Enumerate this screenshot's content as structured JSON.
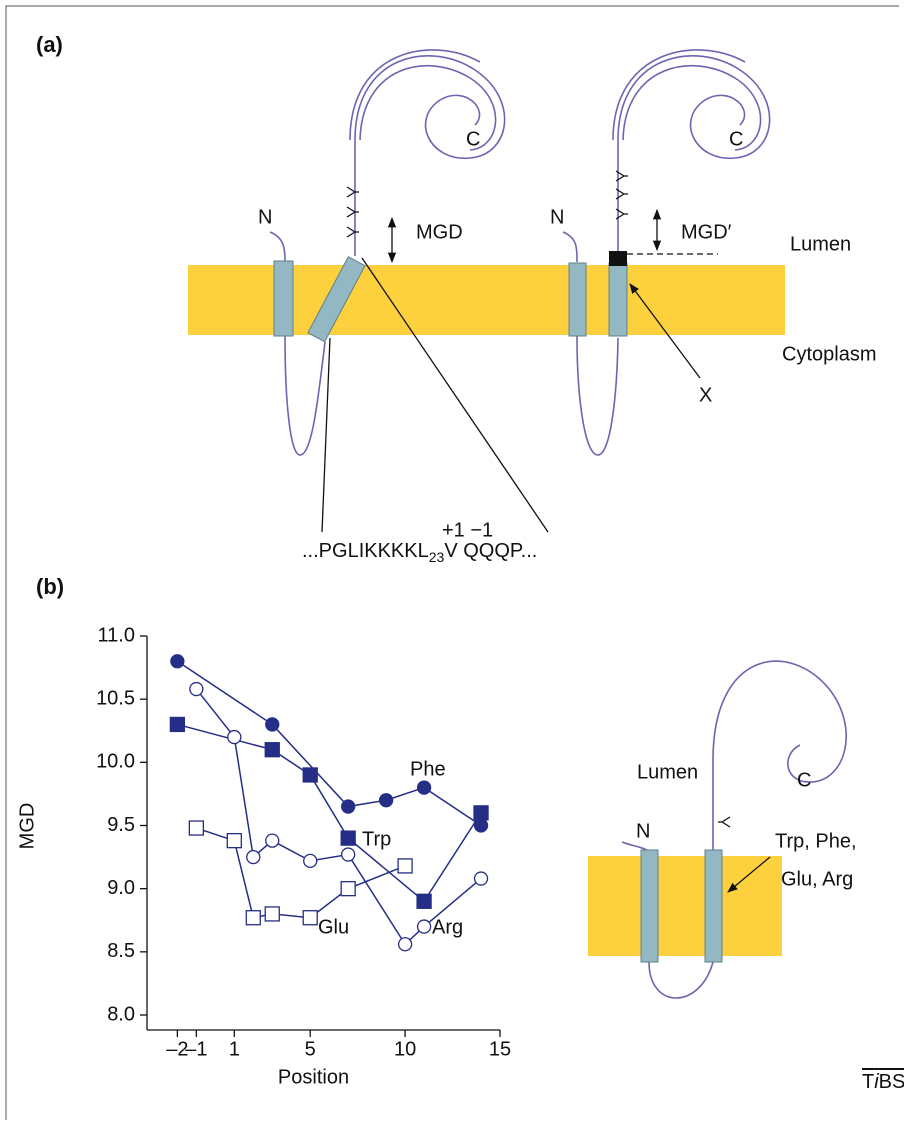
{
  "panel_a": {
    "label": "(a)",
    "c_left": "C",
    "c_right": "C",
    "n_left": "N",
    "n_right": "N",
    "mgd": "MGD",
    "mgd_prime": "MGD′",
    "lumen": "Lumen",
    "cytoplasm": "Cytoplasm",
    "x_label": "X",
    "sequence": {
      "start": "...PGLIKKKKL",
      "subscript": "23",
      "middle": "V",
      "end": " QQQP...",
      "superscript": "+1 −1"
    }
  },
  "panel_b_label": "(b)",
  "chart_data": {
    "type": "line",
    "x_label": "Position",
    "y_label": "MGD",
    "xlim": [
      -3.6,
      15
    ],
    "ylim": [
      8,
      11
    ],
    "xticks": [
      {
        "value": -2,
        "label": "–2"
      },
      {
        "value": -1,
        "label": "–1"
      },
      1,
      5,
      10,
      15
    ],
    "yticks": [
      {
        "value": 8,
        "label": "8.0"
      },
      8.5,
      {
        "value": 9,
        "label": "9.0"
      },
      9.5,
      {
        "value": 10,
        "label": "10.0"
      },
      10.5,
      {
        "value": 11,
        "label": "11.0"
      }
    ],
    "series": [
      {
        "name": "Phe",
        "color": "#252e86",
        "marker": "circle",
        "filled": true,
        "x": [
          -2,
          3,
          7,
          9,
          11,
          14
        ],
        "values": [
          10.8,
          10.3,
          9.65,
          9.7,
          9.8,
          9.5
        ]
      },
      {
        "name": "Trp",
        "color": "#252e86",
        "marker": "square",
        "filled": true,
        "x": [
          -2,
          3,
          5,
          7,
          11,
          14
        ],
        "values": [
          10.3,
          10.1,
          9.9,
          9.4,
          8.9,
          9.6
        ]
      },
      {
        "name": "Glu",
        "color": "#252e86",
        "marker": "square",
        "filled": false,
        "x": [
          -1,
          1,
          2,
          3,
          5,
          7,
          10
        ],
        "values": [
          9.48,
          9.38,
          8.77,
          8.8,
          8.77,
          9.0,
          9.18
        ]
      },
      {
        "name": "Arg",
        "color": "#252e86",
        "marker": "circle",
        "filled": false,
        "x": [
          -1,
          1,
          2,
          3,
          5,
          7,
          10,
          11,
          14
        ],
        "values": [
          10.58,
          10.2,
          9.25,
          9.38,
          9.22,
          9.27,
          8.56,
          8.7,
          9.08
        ]
      }
    ]
  },
  "panel_b": {
    "lumen": "Lumen",
    "n": "N",
    "c": "C",
    "residues_line1": "Trp, Phe,",
    "residues_line2": "Glu, Arg"
  },
  "credit": {
    "parts": [
      "T",
      "i",
      "BS"
    ]
  }
}
